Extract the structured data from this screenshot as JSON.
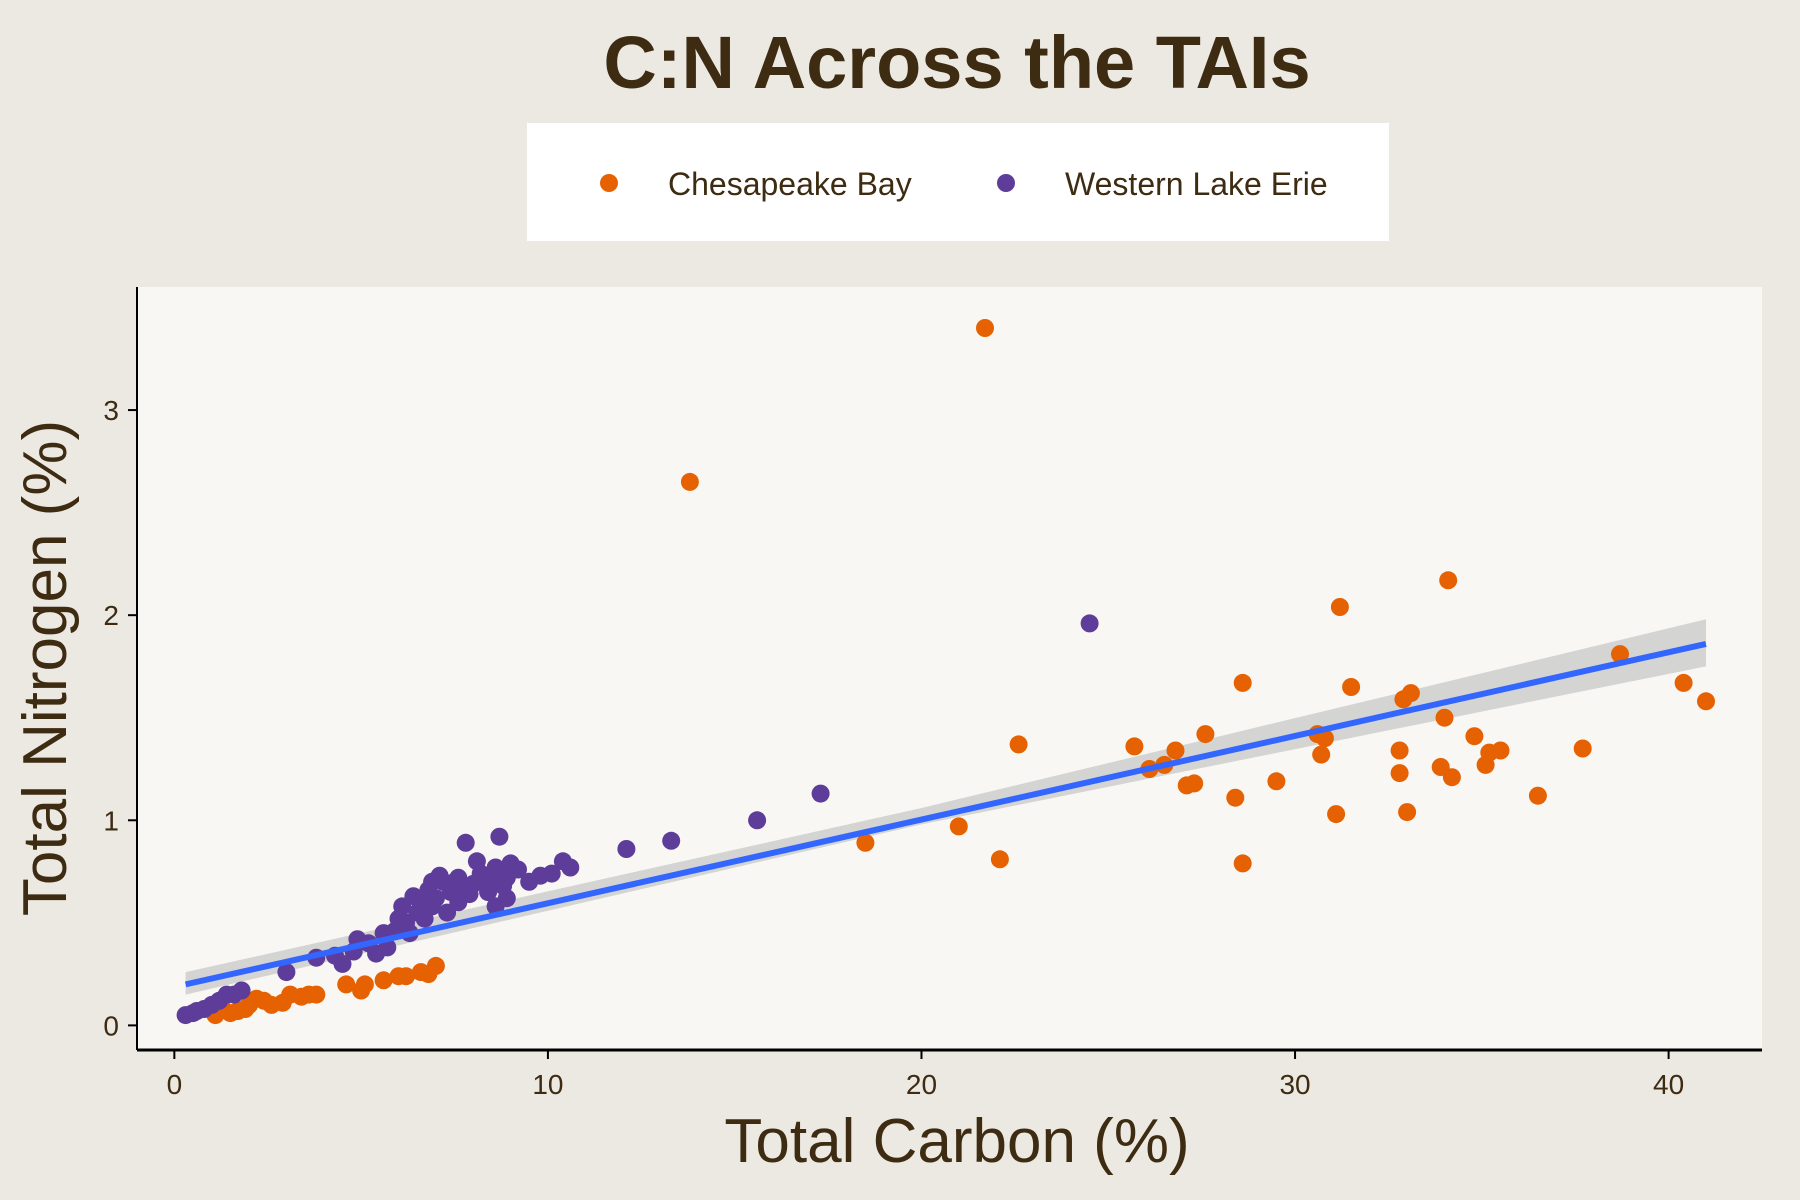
{
  "chart_data": {
    "type": "scatter",
    "title": "C:N Across the TAIs",
    "xlabel": "Total Carbon (%)",
    "ylabel": "Total Nitrogen (%)",
    "xlim": [
      -1,
      42.5
    ],
    "ylim": [
      -0.12,
      3.6
    ],
    "x_ticks": [
      0,
      10,
      20,
      30,
      40
    ],
    "y_ticks": [
      0,
      1,
      2,
      3
    ],
    "grid": false,
    "legend_position": "top",
    "colors": {
      "background": "#ece8e2",
      "panel": "#f8f7f4",
      "text": "#3d2b12",
      "chesapeake": "#e66101",
      "erie": "#5e3c99",
      "trend": "#3366ff",
      "ribbon": "#c8c8c8"
    },
    "series": [
      {
        "name": "Chesapeake Bay",
        "points": [
          [
            13.8,
            2.65
          ],
          [
            21.7,
            3.4
          ],
          [
            34.1,
            2.17
          ],
          [
            31.2,
            2.04
          ],
          [
            38.7,
            1.81
          ],
          [
            40.4,
            1.67
          ],
          [
            41.0,
            1.58
          ],
          [
            28.6,
            1.67
          ],
          [
            31.5,
            1.65
          ],
          [
            33.1,
            1.62
          ],
          [
            32.9,
            1.59
          ],
          [
            34.0,
            1.5
          ],
          [
            34.8,
            1.41
          ],
          [
            35.5,
            1.34
          ],
          [
            35.2,
            1.33
          ],
          [
            37.7,
            1.35
          ],
          [
            30.6,
            1.42
          ],
          [
            30.8,
            1.4
          ],
          [
            30.7,
            1.32
          ],
          [
            27.6,
            1.42
          ],
          [
            26.8,
            1.34
          ],
          [
            26.5,
            1.27
          ],
          [
            26.1,
            1.25
          ],
          [
            25.7,
            1.36
          ],
          [
            22.6,
            1.37
          ],
          [
            27.3,
            1.18
          ],
          [
            27.1,
            1.17
          ],
          [
            29.5,
            1.19
          ],
          [
            28.4,
            1.11
          ],
          [
            32.8,
            1.34
          ],
          [
            32.8,
            1.23
          ],
          [
            34.2,
            1.21
          ],
          [
            33.9,
            1.26
          ],
          [
            35.1,
            1.27
          ],
          [
            36.5,
            1.12
          ],
          [
            31.1,
            1.03
          ],
          [
            33.0,
            1.04
          ],
          [
            28.6,
            0.79
          ],
          [
            21.0,
            0.97
          ],
          [
            22.1,
            0.81
          ],
          [
            18.5,
            0.89
          ],
          [
            7.0,
            0.29
          ],
          [
            6.8,
            0.25
          ],
          [
            6.6,
            0.26
          ],
          [
            6.2,
            0.24
          ],
          [
            6.0,
            0.24
          ],
          [
            5.6,
            0.22
          ],
          [
            5.1,
            0.2
          ],
          [
            4.6,
            0.2
          ],
          [
            5.0,
            0.17
          ],
          [
            3.8,
            0.15
          ],
          [
            3.6,
            0.15
          ],
          [
            3.4,
            0.14
          ],
          [
            3.1,
            0.15
          ],
          [
            2.9,
            0.11
          ],
          [
            2.6,
            0.1
          ],
          [
            2.4,
            0.12
          ],
          [
            2.2,
            0.13
          ],
          [
            1.9,
            0.08
          ],
          [
            1.7,
            0.07
          ],
          [
            1.5,
            0.06
          ],
          [
            1.3,
            0.08
          ],
          [
            1.1,
            0.05
          ],
          [
            2.0,
            0.1
          ]
        ]
      },
      {
        "name": "Western Lake Erie",
        "points": [
          [
            24.5,
            1.96
          ],
          [
            17.3,
            1.13
          ],
          [
            15.6,
            1.0
          ],
          [
            13.3,
            0.9
          ],
          [
            12.1,
            0.86
          ],
          [
            10.6,
            0.77
          ],
          [
            10.4,
            0.8
          ],
          [
            10.1,
            0.74
          ],
          [
            9.8,
            0.73
          ],
          [
            9.5,
            0.7
          ],
          [
            9.2,
            0.76
          ],
          [
            9.0,
            0.79
          ],
          [
            8.9,
            0.72
          ],
          [
            8.8,
            0.68
          ],
          [
            8.7,
            0.92
          ],
          [
            8.6,
            0.77
          ],
          [
            8.5,
            0.72
          ],
          [
            8.4,
            0.65
          ],
          [
            8.3,
            0.7
          ],
          [
            8.2,
            0.74
          ],
          [
            8.1,
            0.8
          ],
          [
            8.0,
            0.69
          ],
          [
            7.9,
            0.64
          ],
          [
            7.8,
            0.89
          ],
          [
            7.7,
            0.67
          ],
          [
            7.6,
            0.6
          ],
          [
            7.5,
            0.7
          ],
          [
            7.4,
            0.65
          ],
          [
            7.3,
            0.55
          ],
          [
            7.2,
            0.7
          ],
          [
            7.1,
            0.73
          ],
          [
            7.0,
            0.62
          ],
          [
            6.9,
            0.58
          ],
          [
            6.8,
            0.66
          ],
          [
            6.7,
            0.52
          ],
          [
            6.6,
            0.6
          ],
          [
            6.5,
            0.55
          ],
          [
            6.4,
            0.63
          ],
          [
            6.3,
            0.45
          ],
          [
            6.2,
            0.5
          ],
          [
            6.1,
            0.58
          ],
          [
            6.0,
            0.52
          ],
          [
            5.9,
            0.46
          ],
          [
            5.7,
            0.38
          ],
          [
            5.6,
            0.45
          ],
          [
            5.4,
            0.35
          ],
          [
            5.2,
            0.4
          ],
          [
            4.9,
            0.42
          ],
          [
            4.8,
            0.36
          ],
          [
            4.5,
            0.3
          ],
          [
            4.3,
            0.34
          ],
          [
            3.8,
            0.33
          ],
          [
            3.0,
            0.26
          ],
          [
            1.8,
            0.17
          ],
          [
            1.6,
            0.15
          ],
          [
            1.4,
            0.15
          ],
          [
            1.2,
            0.12
          ],
          [
            1.0,
            0.1
          ],
          [
            0.8,
            0.08
          ],
          [
            0.6,
            0.07
          ],
          [
            0.5,
            0.06
          ],
          [
            0.3,
            0.05
          ],
          [
            8.6,
            0.58
          ],
          [
            8.9,
            0.62
          ],
          [
            7.6,
            0.72
          ],
          [
            6.9,
            0.7
          ]
        ]
      }
    ],
    "trend": {
      "from": [
        0.3,
        0.2
      ],
      "to": [
        41.0,
        1.86
      ],
      "ribbon_lower": [
        [
          0.3,
          0.15
        ],
        [
          20.0,
          0.98
        ],
        [
          41.0,
          1.75
        ]
      ],
      "ribbon_upper": [
        [
          0.3,
          0.26
        ],
        [
          20.0,
          1.06
        ],
        [
          41.0,
          1.98
        ]
      ]
    }
  }
}
